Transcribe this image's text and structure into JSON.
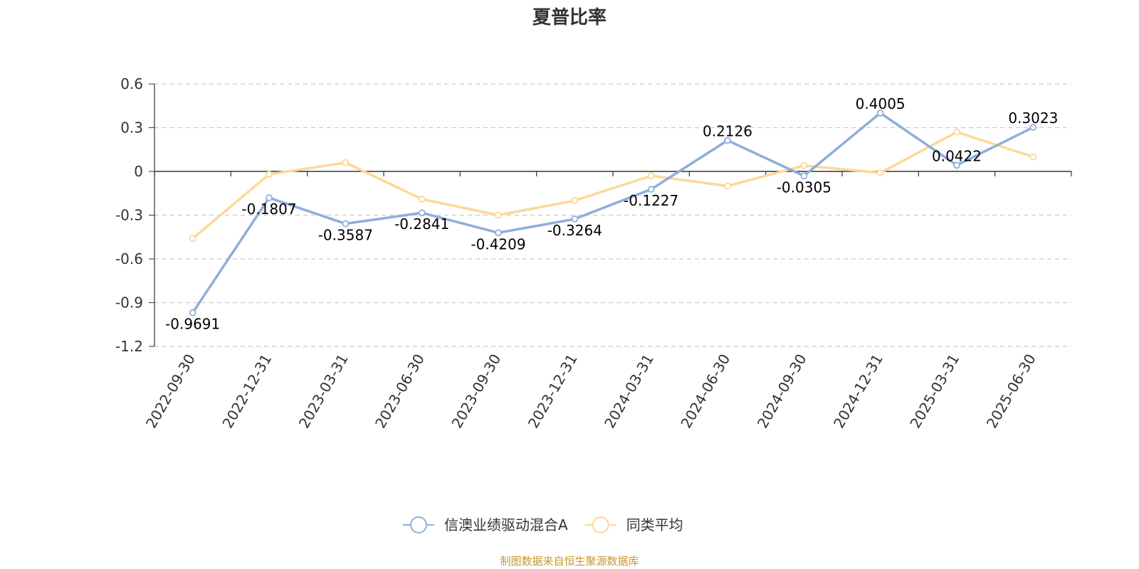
{
  "chart_data": {
    "type": "line",
    "title": "夏普比率",
    "categories": [
      "2022-09-30",
      "2022-12-31",
      "2023-03-31",
      "2023-06-30",
      "2023-09-30",
      "2023-12-31",
      "2024-03-31",
      "2024-06-30",
      "2024-09-30",
      "2024-12-31",
      "2025-03-31",
      "2025-06-30"
    ],
    "series": [
      {
        "name": "信澳业绩驱动混合A",
        "color": "#8eaedb",
        "values": [
          -0.9691,
          -0.1807,
          -0.3587,
          -0.2841,
          -0.4209,
          -0.3264,
          -0.1227,
          0.2126,
          -0.0305,
          0.4005,
          0.0422,
          0.3023
        ],
        "labels": [
          "-0.9691",
          "-0.1807",
          "-0.3587",
          "-0.2841",
          "-0.4209",
          "-0.3264",
          "-0.1227",
          "0.2126",
          "-0.0305",
          "0.4005",
          "0.0422",
          "0.3023"
        ]
      },
      {
        "name": "同类平均",
        "color": "#fcd898",
        "values": [
          -0.46,
          -0.02,
          0.06,
          -0.19,
          -0.3,
          -0.2,
          -0.03,
          -0.1,
          0.04,
          -0.01,
          0.27,
          0.1
        ]
      }
    ],
    "ylim": [
      -1.2,
      0.6
    ],
    "yticks": [
      0.6,
      0.3,
      0,
      -0.3,
      -0.6,
      -0.9,
      -1.2
    ],
    "ytick_labels": [
      "0.6",
      "0.3",
      "0",
      "-0.3",
      "-0.6",
      "-0.9",
      "-1.2"
    ],
    "grid": true,
    "legend_position": "bottom-center"
  },
  "source": {
    "text": "制图数据来自恒生聚源数据库",
    "color": "#c8962e"
  }
}
